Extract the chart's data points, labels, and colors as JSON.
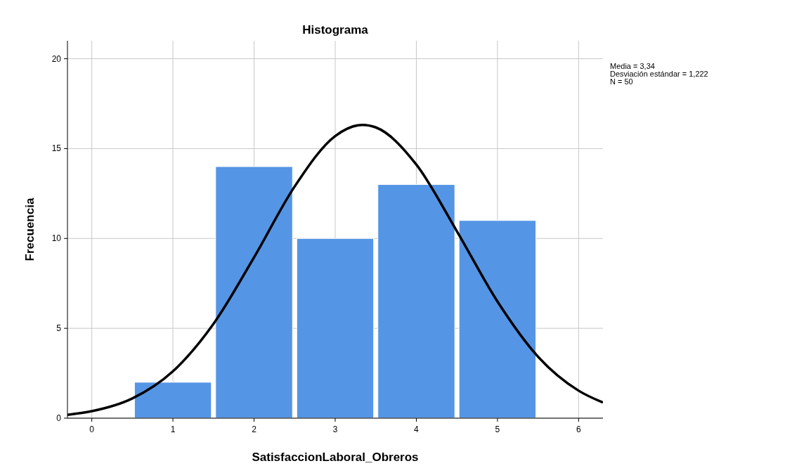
{
  "chart_data": {
    "type": "histogram",
    "title": "Histograma",
    "xlabel": "SatisfaccionLaboral_Obreros",
    "ylabel": "Frecuencia",
    "bins": [
      0.5,
      1.5,
      2.5,
      3.5,
      4.5,
      5.5
    ],
    "values": [
      2,
      14,
      10,
      13,
      11
    ],
    "color": "#5595e5",
    "series": [
      {
        "type": "line",
        "color": "#000000",
        "x": [
          -0.3,
          0,
          0.5,
          1,
          1.5,
          2,
          2.5,
          3,
          3.34,
          3.5,
          4,
          4.5,
          5,
          5.5,
          6,
          6.3
        ],
        "values": [
          0.19,
          0.39,
          1.1,
          2.61,
          5.25,
          8.95,
          12.89,
          15.7,
          16.32,
          16.18,
          14.11,
          10.4,
          6.49,
          3.42,
          1.53,
          0.87
        ]
      }
    ],
    "xlim": [
      -0.3,
      6.3
    ],
    "ylim": [
      0,
      21
    ],
    "xticks": [
      0,
      1,
      2,
      3,
      4,
      5,
      6
    ],
    "yticks": [
      0,
      5,
      10,
      15,
      20
    ],
    "grid": true,
    "annotations": [
      "Media = 3,34",
      "Desviación estándar = 1,222",
      "N = 50"
    ]
  }
}
